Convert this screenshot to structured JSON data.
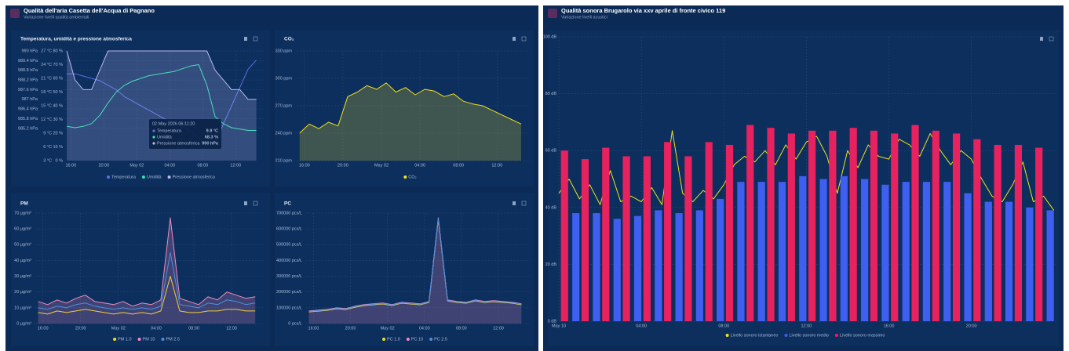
{
  "panels": [
    {
      "title": "Qualità dell'aria Casetta dell'Acqua di Pagnano",
      "subtitle": "Variazione livelli qualità ambientali"
    },
    {
      "title": "Qualità sonora Brugarolo via xxv aprile di fronte civico 119",
      "subtitle": "Variazione livelli acustici"
    }
  ],
  "chart_data": [
    {
      "type": "line",
      "title": "Temperatura, umidità e pressione atmosferica",
      "grid": true,
      "x": [
        15.5,
        16.5,
        17.5,
        18.5,
        19.5,
        20.5,
        21.5,
        22.5,
        23.5,
        24.5,
        25.5,
        26.5,
        27.5,
        28.5,
        29.5,
        30.5,
        31.5,
        32.5,
        33.5,
        34.5,
        35.5,
        36.5,
        37.5,
        38.5
      ],
      "xlim": [
        15.2,
        39.4
      ],
      "xticks": [
        {
          "value": 16,
          "label": "16:00"
        },
        {
          "value": 20,
          "label": "20:00"
        },
        {
          "value": 24,
          "label": "May 02"
        },
        {
          "value": 28,
          "label": "04:00"
        },
        {
          "value": 32,
          "label": "08:00"
        },
        {
          "value": 36,
          "label": "12:00"
        }
      ],
      "ylim": [
        983.2,
        990
      ],
      "yticks": [
        {
          "value": 990,
          "label": "990 hPa"
        },
        {
          "value": 989.4,
          "label": "989.4 hPa"
        },
        {
          "value": 988.8,
          "label": "988.8 hPa"
        },
        {
          "value": 988.2,
          "label": "988.2 hPa"
        },
        {
          "value": 987.6,
          "label": "987.6 hPa"
        },
        {
          "value": 987,
          "label": "987 hPa"
        },
        {
          "value": 986.4,
          "label": "986.4 hPa"
        },
        {
          "value": 985.8,
          "label": "985.8 hPa"
        },
        {
          "value": 985.2,
          "label": "985.2 hPa"
        }
      ],
      "y2lim": [
        3,
        27
      ],
      "y2ticks": [
        {
          "value": 27,
          "label": "27 °C"
        },
        {
          "value": 24,
          "label": "24 °C"
        },
        {
          "value": 21,
          "label": "21 °C"
        },
        {
          "value": 18,
          "label": "18 °C"
        },
        {
          "value": 15,
          "label": "15 °C"
        },
        {
          "value": 12,
          "label": "12 °C"
        },
        {
          "value": 9,
          "label": "9 °C"
        },
        {
          "value": 6,
          "label": "6 °C"
        },
        {
          "value": 3,
          "label": "3 °C"
        }
      ],
      "y3lim": [
        0,
        80
      ],
      "y3ticks": [
        {
          "value": 80,
          "label": "80 %"
        },
        {
          "value": 70,
          "label": "70 %"
        },
        {
          "value": 60,
          "label": "60 %"
        },
        {
          "value": 50,
          "label": "50 %"
        },
        {
          "value": 40,
          "label": "40 %"
        },
        {
          "value": 30,
          "label": "30 %"
        },
        {
          "value": 20,
          "label": "20 %"
        },
        {
          "value": 10,
          "label": "10 %"
        },
        {
          "value": 0,
          "label": "0 %"
        }
      ],
      "series": [
        {
          "name": "Temperatura",
          "color": "#5c6fe6",
          "axis": "y2",
          "values": [
            22,
            22,
            21.5,
            21,
            20.5,
            19.5,
            18.5,
            17,
            16,
            15,
            14,
            13,
            12,
            11.5,
            10.5,
            9.5,
            8,
            6,
            7,
            11,
            15,
            19,
            23,
            25
          ]
        },
        {
          "name": "Umidità",
          "color": "#2ee6b0",
          "axis": "y3",
          "values": [
            25,
            24,
            25,
            27,
            33,
            42,
            50,
            55,
            58,
            60,
            62,
            63,
            64,
            65,
            67,
            69,
            70,
            55,
            32,
            27,
            24,
            23,
            22,
            22
          ]
        },
        {
          "name": "Pressione atmosferica",
          "color": "#b9b9f0",
          "axis": "y",
          "fill": true,
          "values": [
            990,
            988.2,
            987.6,
            987.6,
            988.8,
            990,
            990,
            990,
            990,
            990,
            990,
            990,
            990,
            990,
            990,
            990,
            990,
            990,
            988.8,
            988.2,
            987.6,
            987.6,
            987,
            987
          ]
        }
      ],
      "tooltip": {
        "title": "02 May 2026 06:11:20",
        "rows": [
          {
            "name": "Temperatura",
            "value": "9.9 °C"
          },
          {
            "name": "Umidità",
            "value": "68.3 %"
          },
          {
            "name": "Pressione atmosferica",
            "value": "990 hPa"
          }
        ]
      }
    },
    {
      "type": "line",
      "title": "CO₂",
      "grid": true,
      "x": [
        15.5,
        16.5,
        17.5,
        18.5,
        19.5,
        20.5,
        21.5,
        22.5,
        23.5,
        24.5,
        25.5,
        26.5,
        27.5,
        28.5,
        29.5,
        30.5,
        31.5,
        32.5,
        33.5,
        34.5,
        35.5,
        36.5,
        37.5,
        38.5
      ],
      "xlim": [
        15.2,
        39.4
      ],
      "xticks": [
        {
          "value": 16,
          "label": "16:00"
        },
        {
          "value": 20,
          "label": "20:00"
        },
        {
          "value": 24,
          "label": "May 02"
        },
        {
          "value": 28,
          "label": "04:00"
        },
        {
          "value": 32,
          "label": "08:00"
        },
        {
          "value": 36,
          "label": "12:00"
        }
      ],
      "ylim": [
        210,
        330
      ],
      "yticks": [
        {
          "value": 330,
          "label": "330 ppm"
        },
        {
          "value": 300,
          "label": "300 ppm"
        },
        {
          "value": 270,
          "label": "270 ppm"
        },
        {
          "value": 240,
          "label": "240 ppm"
        },
        {
          "value": 210,
          "label": "210 ppm"
        }
      ],
      "series": [
        {
          "name": "CO₂",
          "color": "#f2e01c",
          "fill": true,
          "values": [
            240,
            250,
            245,
            252,
            248,
            280,
            285,
            292,
            288,
            295,
            285,
            290,
            282,
            288,
            286,
            280,
            283,
            275,
            272,
            270,
            265,
            260,
            255,
            250
          ]
        }
      ]
    },
    {
      "type": "line",
      "title": "PM",
      "grid": true,
      "x": [
        15.5,
        16.5,
        17.5,
        18.5,
        19.5,
        20.5,
        21.5,
        22.5,
        23.5,
        24.5,
        25.5,
        26.5,
        27.5,
        28.5,
        29.5,
        30.5,
        31.5,
        32.5,
        33.5,
        34.5,
        35.5,
        36.5,
        37.5,
        38.5
      ],
      "xlim": [
        15.2,
        39.4
      ],
      "xticks": [
        {
          "value": 16,
          "label": "16:00"
        },
        {
          "value": 20,
          "label": "20:00"
        },
        {
          "value": 24,
          "label": "May 02"
        },
        {
          "value": 28,
          "label": "04:00"
        },
        {
          "value": 32,
          "label": "08:00"
        },
        {
          "value": 36,
          "label": "12:00"
        }
      ],
      "ylim": [
        0,
        70
      ],
      "yticks": [
        {
          "value": 70,
          "label": "70 µg/m³"
        },
        {
          "value": 60,
          "label": "60 µg/m³"
        },
        {
          "value": 50,
          "label": "50 µg/m³"
        },
        {
          "value": 40,
          "label": "40 µg/m³"
        },
        {
          "value": 30,
          "label": "30 µg/m³"
        },
        {
          "value": 20,
          "label": "20 µg/m³"
        },
        {
          "value": 10,
          "label": "10 µg/m³"
        },
        {
          "value": 0,
          "label": "0 µg/m³"
        }
      ],
      "series": [
        {
          "name": "PM 1.0",
          "color": "#f2e01c",
          "values": [
            7,
            6,
            8,
            7,
            8,
            9,
            8,
            7,
            6,
            7,
            6,
            7,
            6,
            8,
            30,
            8,
            7,
            7,
            8,
            8,
            9,
            9,
            8,
            8
          ]
        },
        {
          "name": "PM 10",
          "color": "#f08cc0",
          "fill": true,
          "values": [
            14,
            12,
            15,
            13,
            16,
            18,
            14,
            13,
            12,
            14,
            11,
            13,
            12,
            15,
            67,
            16,
            14,
            12,
            17,
            15,
            20,
            18,
            16,
            17
          ]
        },
        {
          "name": "PM 2.5",
          "color": "#4a90e2",
          "values": [
            10,
            9,
            11,
            10,
            12,
            13,
            11,
            10,
            9,
            10,
            9,
            10,
            9,
            11,
            45,
            12,
            11,
            10,
            13,
            12,
            15,
            14,
            12,
            13
          ]
        }
      ]
    },
    {
      "type": "line",
      "title": "PC",
      "grid": true,
      "x": [
        15.5,
        16.5,
        17.5,
        18.5,
        19.5,
        20.5,
        21.5,
        22.5,
        23.5,
        24.5,
        25.5,
        26.5,
        27.5,
        28.5,
        29.5,
        30.5,
        31.5,
        32.5,
        33.5,
        34.5,
        35.5,
        36.5,
        37.5,
        38.5
      ],
      "xlim": [
        15.2,
        39.4
      ],
      "xticks": [
        {
          "value": 16,
          "label": "16:00"
        },
        {
          "value": 20,
          "label": "20:00"
        },
        {
          "value": 24,
          "label": "May 02"
        },
        {
          "value": 28,
          "label": "04:00"
        },
        {
          "value": 32,
          "label": "08:00"
        },
        {
          "value": 36,
          "label": "12:00"
        }
      ],
      "ylim": [
        0,
        700000
      ],
      "yticks": [
        {
          "value": 700000,
          "label": "700000 pcs/L"
        },
        {
          "value": 600000,
          "label": "600000 pcs/L"
        },
        {
          "value": 500000,
          "label": "500000 pcs/L"
        },
        {
          "value": 400000,
          "label": "400000 pcs/L"
        },
        {
          "value": 300000,
          "label": "300000 pcs/L"
        },
        {
          "value": 200000,
          "label": "200000 pcs/L"
        },
        {
          "value": 100000,
          "label": "100000 pcs/L"
        },
        {
          "value": 0,
          "label": "0 pcs/L"
        }
      ],
      "series": [
        {
          "name": "PC 1.0",
          "color": "#f2e01c",
          "values": [
            74000,
            79000,
            84000,
            94000,
            89000,
            104000,
            114000,
            119000,
            124000,
            114000,
            129000,
            124000,
            119000,
            134000,
            660000,
            144000,
            134000,
            129000,
            144000,
            134000,
            139000,
            134000,
            129000,
            119000
          ]
        },
        {
          "name": "PC 10",
          "color": "#f08cc0",
          "fill": true,
          "values": [
            80000,
            85000,
            90000,
            100000,
            95000,
            110000,
            120000,
            125000,
            130000,
            120000,
            135000,
            130000,
            125000,
            140000,
            670000,
            150000,
            140000,
            135000,
            150000,
            140000,
            145000,
            140000,
            135000,
            125000
          ]
        },
        {
          "name": "PC 2.5",
          "color": "#4a90e2",
          "values": [
            77000,
            82000,
            87000,
            97000,
            92000,
            107000,
            117000,
            122000,
            127000,
            117000,
            132000,
            127000,
            122000,
            137000,
            665000,
            147000,
            137000,
            132000,
            147000,
            137000,
            142000,
            137000,
            132000,
            122000
          ]
        }
      ]
    },
    {
      "type": "bar",
      "grid": true,
      "x": [
        0,
        1,
        2,
        3,
        4,
        5,
        6,
        7,
        8,
        9,
        10,
        11,
        12,
        13,
        14,
        15,
        16,
        17,
        18,
        19,
        20,
        21,
        22,
        23
      ],
      "xlim": [
        0,
        24.2
      ],
      "xticks": [
        {
          "value": 0,
          "label": "May 10"
        },
        {
          "value": 4,
          "label": "04:00"
        },
        {
          "value": 8,
          "label": "08:00"
        },
        {
          "value": 12,
          "label": "12:00"
        },
        {
          "value": 16,
          "label": "16:00"
        },
        {
          "value": 20,
          "label": "20:00"
        }
      ],
      "ylim": [
        0,
        100
      ],
      "yticks": [
        {
          "value": 100,
          "label": "100 dB"
        },
        {
          "value": 80,
          "label": "80 dB"
        },
        {
          "value": 60,
          "label": "60 dB"
        },
        {
          "value": 40,
          "label": "40 dB"
        },
        {
          "value": 20,
          "label": "20 dB"
        },
        {
          "value": 0,
          "label": "0 dB"
        }
      ],
      "series": [
        {
          "name": "Livello sonoro istantaneo",
          "color": "#f2e01c",
          "type": "line",
          "x": [
            0,
            0.5,
            1,
            1.5,
            2,
            2.5,
            3,
            3.5,
            4,
            4.5,
            5,
            5.5,
            6,
            6.5,
            7,
            7.5,
            8,
            8.5,
            9,
            9.5,
            10,
            10.5,
            11,
            11.5,
            12,
            12.5,
            13,
            13.5,
            14,
            14.5,
            15,
            15.5,
            16,
            16.5,
            17,
            17.5,
            18,
            18.5,
            19,
            19.5,
            20,
            20.5,
            21,
            21.5,
            22,
            22.5,
            23,
            23.5,
            24
          ],
          "values": [
            45,
            50,
            43,
            48,
            41,
            53,
            42,
            44,
            42,
            47,
            41,
            67,
            45,
            42,
            46,
            43,
            48,
            55,
            58,
            56,
            60,
            55,
            62,
            57,
            63,
            65,
            58,
            45,
            60,
            54,
            62,
            58,
            57,
            64,
            62,
            58,
            66,
            60,
            55,
            60,
            57,
            50,
            44,
            42,
            48,
            56,
            42,
            44,
            39
          ]
        },
        {
          "name": "Livello sonoro medio",
          "color": "#3f5ff0",
          "values": [
            38,
            38,
            36,
            37,
            39,
            38,
            39,
            43,
            49,
            49,
            49,
            51,
            50,
            51,
            50,
            48,
            49,
            49,
            49,
            45,
            42,
            42,
            40,
            39
          ]
        },
        {
          "name": "Livello sonoro massimo",
          "color": "#e8215f",
          "values": [
            60,
            57,
            61,
            58,
            58,
            63,
            58,
            63,
            62,
            69,
            68,
            66,
            67,
            67,
            68,
            67,
            66,
            69,
            67,
            66,
            64,
            62,
            62,
            61
          ]
        }
      ]
    }
  ]
}
